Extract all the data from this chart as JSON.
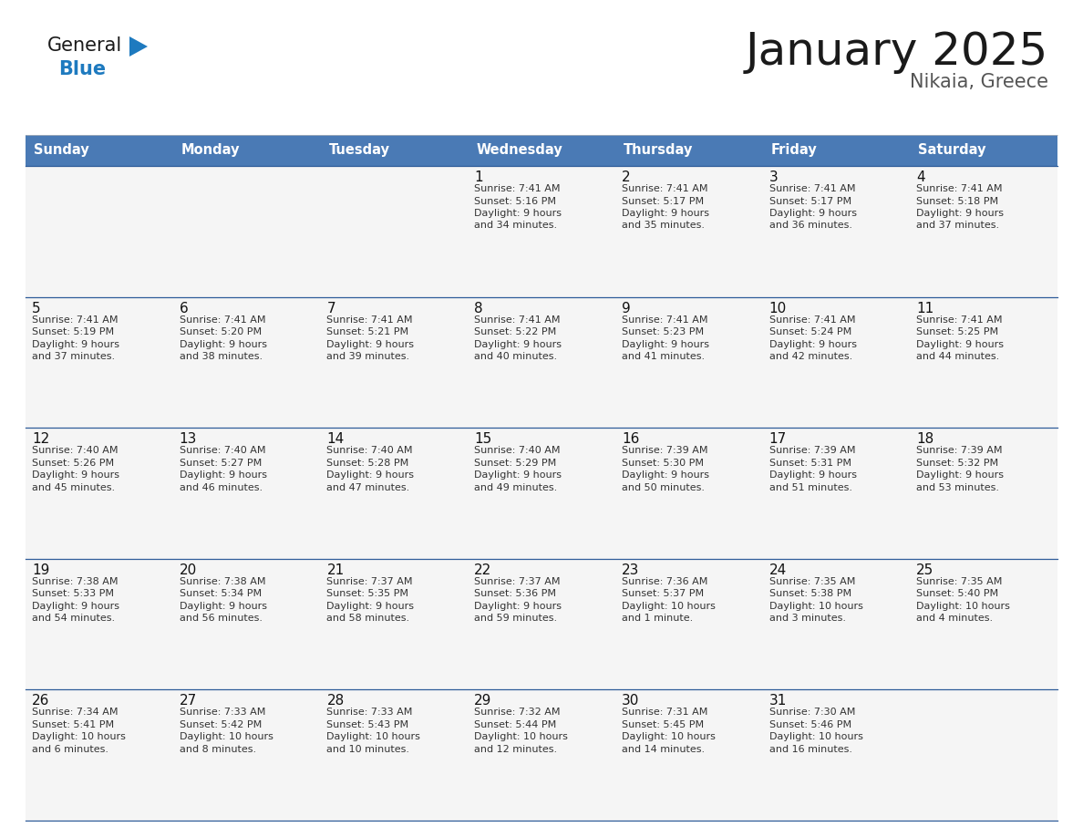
{
  "title": "January 2025",
  "subtitle": "Nikaia, Greece",
  "days_of_week": [
    "Sunday",
    "Monday",
    "Tuesday",
    "Wednesday",
    "Thursday",
    "Friday",
    "Saturday"
  ],
  "header_bg": "#4a7ab5",
  "header_text": "#ffffff",
  "cell_bg": "#f5f5f5",
  "border_color": "#2e5c99",
  "title_color": "#1a1a1a",
  "subtitle_color": "#555555",
  "logo_general_color": "#1a1a1a",
  "logo_blue_color": "#1e7abf",
  "text_color": "#333333",
  "calendar_data": [
    [
      {
        "day": null
      },
      {
        "day": null
      },
      {
        "day": null
      },
      {
        "day": 1,
        "sunrise": "7:41 AM",
        "sunset": "5:16 PM",
        "daylight": "9 hours\nand 34 minutes."
      },
      {
        "day": 2,
        "sunrise": "7:41 AM",
        "sunset": "5:17 PM",
        "daylight": "9 hours\nand 35 minutes."
      },
      {
        "day": 3,
        "sunrise": "7:41 AM",
        "sunset": "5:17 PM",
        "daylight": "9 hours\nand 36 minutes."
      },
      {
        "day": 4,
        "sunrise": "7:41 AM",
        "sunset": "5:18 PM",
        "daylight": "9 hours\nand 37 minutes."
      }
    ],
    [
      {
        "day": 5,
        "sunrise": "7:41 AM",
        "sunset": "5:19 PM",
        "daylight": "9 hours\nand 37 minutes."
      },
      {
        "day": 6,
        "sunrise": "7:41 AM",
        "sunset": "5:20 PM",
        "daylight": "9 hours\nand 38 minutes."
      },
      {
        "day": 7,
        "sunrise": "7:41 AM",
        "sunset": "5:21 PM",
        "daylight": "9 hours\nand 39 minutes."
      },
      {
        "day": 8,
        "sunrise": "7:41 AM",
        "sunset": "5:22 PM",
        "daylight": "9 hours\nand 40 minutes."
      },
      {
        "day": 9,
        "sunrise": "7:41 AM",
        "sunset": "5:23 PM",
        "daylight": "9 hours\nand 41 minutes."
      },
      {
        "day": 10,
        "sunrise": "7:41 AM",
        "sunset": "5:24 PM",
        "daylight": "9 hours\nand 42 minutes."
      },
      {
        "day": 11,
        "sunrise": "7:41 AM",
        "sunset": "5:25 PM",
        "daylight": "9 hours\nand 44 minutes."
      }
    ],
    [
      {
        "day": 12,
        "sunrise": "7:40 AM",
        "sunset": "5:26 PM",
        "daylight": "9 hours\nand 45 minutes."
      },
      {
        "day": 13,
        "sunrise": "7:40 AM",
        "sunset": "5:27 PM",
        "daylight": "9 hours\nand 46 minutes."
      },
      {
        "day": 14,
        "sunrise": "7:40 AM",
        "sunset": "5:28 PM",
        "daylight": "9 hours\nand 47 minutes."
      },
      {
        "day": 15,
        "sunrise": "7:40 AM",
        "sunset": "5:29 PM",
        "daylight": "9 hours\nand 49 minutes."
      },
      {
        "day": 16,
        "sunrise": "7:39 AM",
        "sunset": "5:30 PM",
        "daylight": "9 hours\nand 50 minutes."
      },
      {
        "day": 17,
        "sunrise": "7:39 AM",
        "sunset": "5:31 PM",
        "daylight": "9 hours\nand 51 minutes."
      },
      {
        "day": 18,
        "sunrise": "7:39 AM",
        "sunset": "5:32 PM",
        "daylight": "9 hours\nand 53 minutes."
      }
    ],
    [
      {
        "day": 19,
        "sunrise": "7:38 AM",
        "sunset": "5:33 PM",
        "daylight": "9 hours\nand 54 minutes."
      },
      {
        "day": 20,
        "sunrise": "7:38 AM",
        "sunset": "5:34 PM",
        "daylight": "9 hours\nand 56 minutes."
      },
      {
        "day": 21,
        "sunrise": "7:37 AM",
        "sunset": "5:35 PM",
        "daylight": "9 hours\nand 58 minutes."
      },
      {
        "day": 22,
        "sunrise": "7:37 AM",
        "sunset": "5:36 PM",
        "daylight": "9 hours\nand 59 minutes."
      },
      {
        "day": 23,
        "sunrise": "7:36 AM",
        "sunset": "5:37 PM",
        "daylight": "10 hours\nand 1 minute."
      },
      {
        "day": 24,
        "sunrise": "7:35 AM",
        "sunset": "5:38 PM",
        "daylight": "10 hours\nand 3 minutes."
      },
      {
        "day": 25,
        "sunrise": "7:35 AM",
        "sunset": "5:40 PM",
        "daylight": "10 hours\nand 4 minutes."
      }
    ],
    [
      {
        "day": 26,
        "sunrise": "7:34 AM",
        "sunset": "5:41 PM",
        "daylight": "10 hours\nand 6 minutes."
      },
      {
        "day": 27,
        "sunrise": "7:33 AM",
        "sunset": "5:42 PM",
        "daylight": "10 hours\nand 8 minutes."
      },
      {
        "day": 28,
        "sunrise": "7:33 AM",
        "sunset": "5:43 PM",
        "daylight": "10 hours\nand 10 minutes."
      },
      {
        "day": 29,
        "sunrise": "7:32 AM",
        "sunset": "5:44 PM",
        "daylight": "10 hours\nand 12 minutes."
      },
      {
        "day": 30,
        "sunrise": "7:31 AM",
        "sunset": "5:45 PM",
        "daylight": "10 hours\nand 14 minutes."
      },
      {
        "day": 31,
        "sunrise": "7:30 AM",
        "sunset": "5:46 PM",
        "daylight": "10 hours\nand 16 minutes."
      },
      {
        "day": null
      }
    ]
  ]
}
